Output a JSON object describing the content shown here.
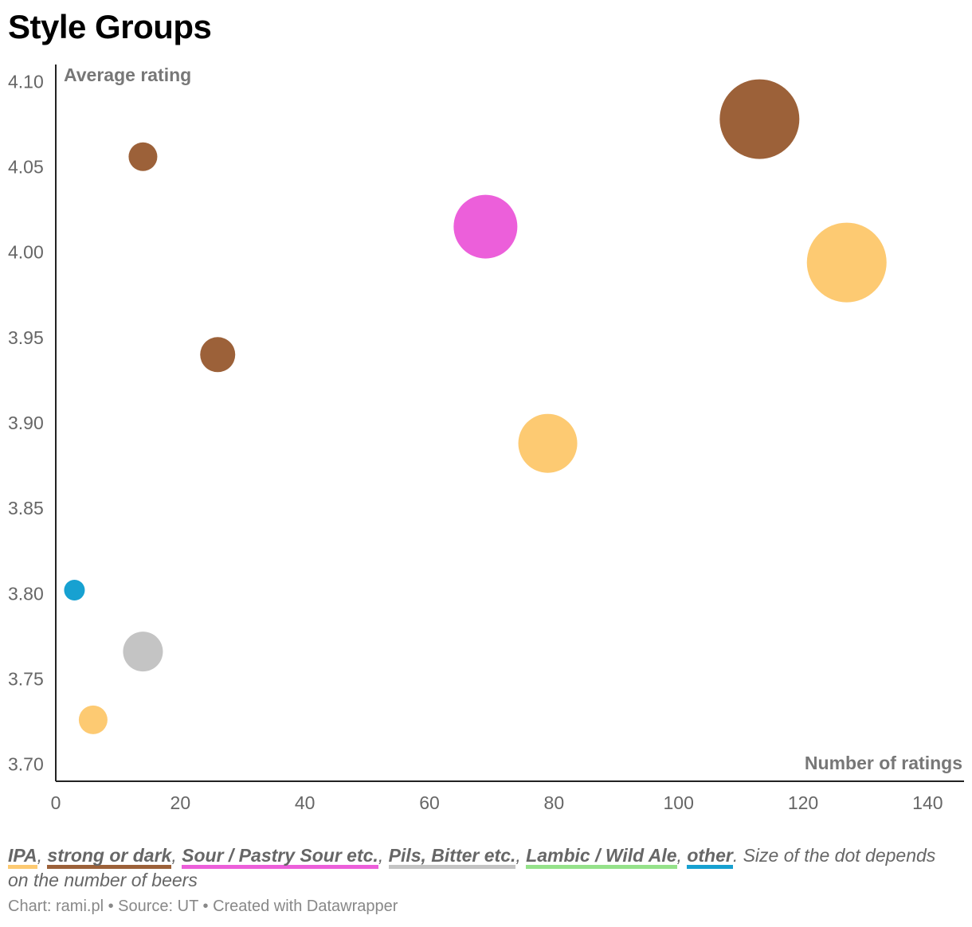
{
  "title": "Style Groups",
  "chart_data": {
    "type": "scatter",
    "title": "Style Groups",
    "xlabel": "Number of ratings",
    "ylabel": "Average rating",
    "xlim": [
      0,
      142
    ],
    "ylim": [
      3.69,
      4.11
    ],
    "x_ticks": [
      "0",
      "20",
      "40",
      "60",
      "80",
      "100",
      "120",
      "140"
    ],
    "y_ticks": [
      "3.70",
      "3.75",
      "3.80",
      "3.85",
      "3.90",
      "3.95",
      "4.00",
      "4.05",
      "4.10"
    ],
    "size_note": "Size of the dot depends on the number of beers",
    "groups": [
      {
        "name": "IPA",
        "color": "#fdca72"
      },
      {
        "name": "strong or dark",
        "color": "#9c6139"
      },
      {
        "name": "Sour / Pastry Sour etc.",
        "color": "#ec5fda"
      },
      {
        "name": "Pils, Bitter etc.",
        "color": "#c4c4c4"
      },
      {
        "name": "Lambic / Wild Ale",
        "color": "#95e28a"
      },
      {
        "name": "other",
        "color": "#17a1d1"
      }
    ],
    "points": [
      {
        "group": "strong or dark",
        "x": 113,
        "y": 4.078,
        "size": 50
      },
      {
        "group": "IPA",
        "x": 127,
        "y": 3.994,
        "size": 50
      },
      {
        "group": "Sour / Pastry Sour etc.",
        "x": 69,
        "y": 4.015,
        "size": 40
      },
      {
        "group": "IPA",
        "x": 79,
        "y": 3.888,
        "size": 37
      },
      {
        "group": "strong or dark",
        "x": 14,
        "y": 4.056,
        "size": 18
      },
      {
        "group": "strong or dark",
        "x": 26,
        "y": 3.94,
        "size": 22
      },
      {
        "group": "other",
        "x": 3,
        "y": 3.802,
        "size": 13
      },
      {
        "group": "Pils, Bitter etc.",
        "x": 14,
        "y": 3.766,
        "size": 25
      },
      {
        "group": "IPA",
        "x": 6,
        "y": 3.726,
        "size": 18
      }
    ]
  },
  "credits": {
    "chart": "Chart: rami.pl",
    "sep1": " • ",
    "source": "Source: UT",
    "sep2": " • ",
    "created": "Created with Datawrapper"
  }
}
